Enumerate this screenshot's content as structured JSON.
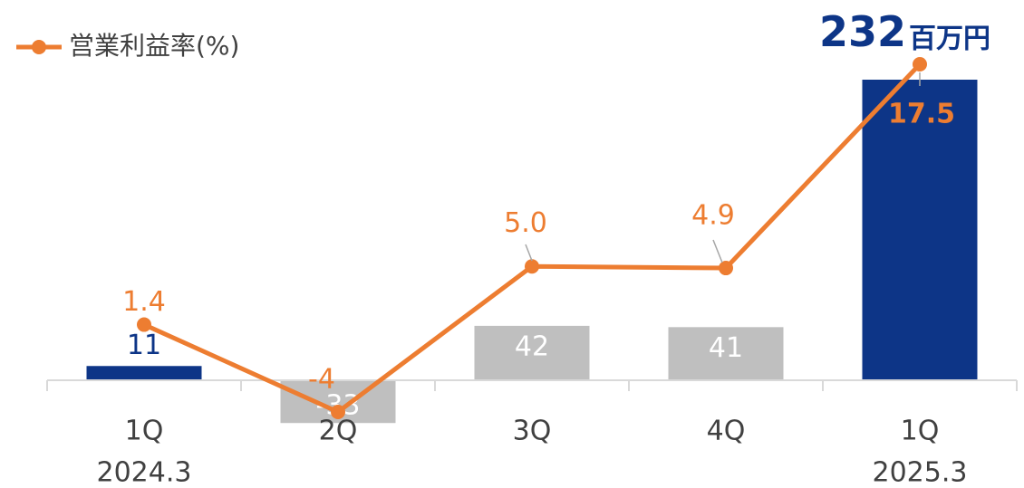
{
  "chart_data": {
    "type": "bar_line",
    "categories": [
      "1Q",
      "2Q",
      "3Q",
      "4Q",
      "1Q"
    ],
    "category_years": [
      "2024.3",
      null,
      null,
      null,
      "2025.3"
    ],
    "series": [
      {
        "type": "bar",
        "colors": [
          "#0d3587",
          "#bfbfbf",
          "#bfbfbf",
          "#bfbfbf",
          "#0d3587"
        ],
        "values": [
          11,
          -33,
          42,
          41,
          232
        ],
        "unit": "百万円"
      },
      {
        "type": "line",
        "name": "営業利益率(%)",
        "color": "#ed7d31",
        "values": [
          1.4,
          -4,
          5.0,
          4.9,
          17.5
        ],
        "value_labels": [
          "1.4",
          "-4",
          "5.0",
          "4.9",
          "17.5"
        ]
      }
    ],
    "legend": "top-left"
  }
}
